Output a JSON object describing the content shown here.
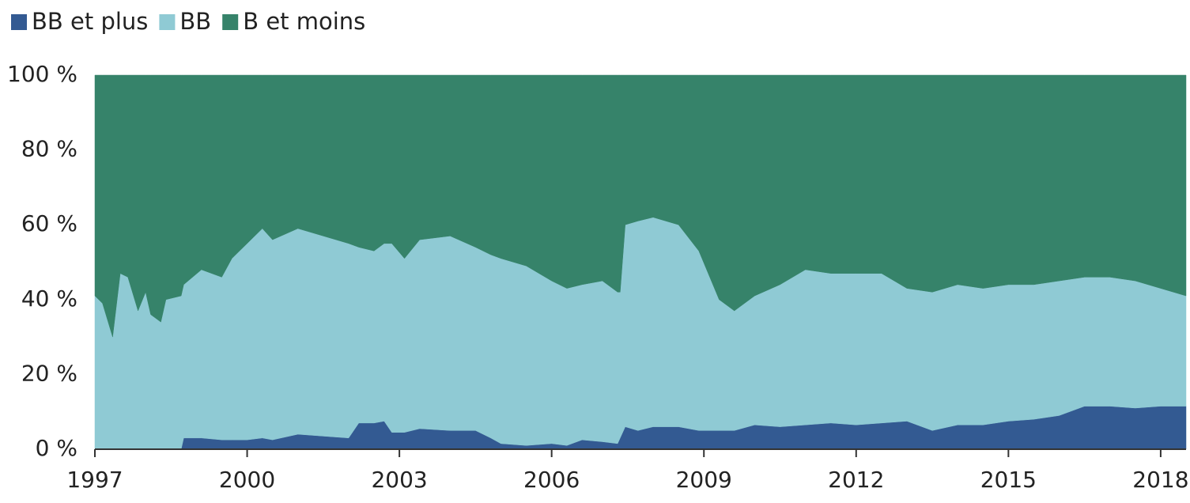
{
  "chart_data": {
    "type": "stacked_area",
    "x": [
      1997.0,
      1997.15,
      1997.35,
      1997.5,
      1997.65,
      1997.85,
      1998.0,
      1998.1,
      1998.3,
      1998.4,
      1998.7,
      1998.75,
      1999.1,
      1999.5,
      1999.7,
      2000.0,
      2000.3,
      2000.5,
      2001.0,
      2001.5,
      2002.0,
      2002.2,
      2002.5,
      2002.7,
      2002.85,
      2003.1,
      2003.4,
      2004.0,
      2004.5,
      2004.8,
      2005.0,
      2005.5,
      2006.0,
      2006.3,
      2006.6,
      2007.0,
      2007.3,
      2007.35,
      2007.45,
      2007.7,
      2008.0,
      2008.5,
      2008.9,
      2009.3,
      2009.6,
      2010.0,
      2010.5,
      2011.0,
      2011.5,
      2012.0,
      2012.5,
      2013.0,
      2013.5,
      2014.0,
      2014.5,
      2015.0,
      2015.5,
      2016.0,
      2016.5,
      2017.0,
      2017.5,
      2018.0,
      2018.5
    ],
    "series": [
      {
        "name": "BB et plus",
        "color": "#335a92",
        "values": [
          0,
          0,
          0,
          0,
          0,
          0,
          0,
          0,
          0,
          0,
          0,
          3,
          3,
          2.5,
          2.5,
          2.5,
          3,
          2.5,
          4,
          3.5,
          3,
          7,
          7,
          7.5,
          4.5,
          4.5,
          5.5,
          5,
          5,
          3,
          1.5,
          1,
          1.5,
          1,
          2.5,
          2,
          1.5,
          3,
          6,
          5,
          6,
          6,
          5,
          5,
          5,
          6.5,
          6,
          6.5,
          7,
          6.5,
          7,
          7.5,
          5,
          6.5,
          6.5,
          7.5,
          8,
          9,
          11.5,
          11.5,
          11,
          11.5,
          11.5
        ]
      },
      {
        "name": "BB",
        "color": "#8fcad4",
        "values": [
          41,
          39,
          30,
          47,
          46,
          37,
          42,
          36,
          34,
          40,
          41,
          41,
          45,
          43.5,
          48.5,
          52.5,
          56,
          53.5,
          55,
          53.5,
          52,
          47,
          46,
          47.5,
          50.5,
          46.5,
          50.5,
          52,
          49,
          49,
          49.5,
          48,
          43.5,
          42,
          41.5,
          43,
          40.5,
          39,
          54,
          56,
          56,
          54,
          48,
          35,
          32,
          34.5,
          38,
          41.5,
          40,
          40.5,
          40,
          35.5,
          37,
          37.5,
          36.5,
          36.5,
          36,
          36,
          34.5,
          34.5,
          34,
          31.5,
          29.5
        ]
      },
      {
        "name": "B et moins",
        "color": "#36836a",
        "values": [
          59,
          61,
          70,
          53,
          54,
          63,
          58,
          64,
          66,
          60,
          59,
          56,
          52,
          54,
          49,
          45,
          41,
          44,
          41,
          43,
          45,
          46,
          47,
          45,
          45,
          49,
          44,
          43,
          46,
          48,
          49,
          51,
          55,
          57,
          56,
          55,
          58,
          58,
          40,
          39,
          38,
          40,
          47,
          60,
          63,
          59,
          56,
          52,
          53,
          53,
          53,
          57,
          58,
          56,
          57,
          56,
          56,
          55,
          54,
          54,
          55,
          57,
          59
        ]
      }
    ],
    "xlim": [
      1997,
      2018.5
    ],
    "xticks": [
      1997,
      2000,
      2003,
      2006,
      2009,
      2012,
      2015,
      2018
    ],
    "ylim": [
      0,
      100
    ],
    "yticks": [
      {
        "value": 0,
        "label": "0 %"
      },
      {
        "value": 20,
        "label": "20 %"
      },
      {
        "value": 40,
        "label": "40 %"
      },
      {
        "value": 60,
        "label": "60 %"
      },
      {
        "value": 80,
        "label": "80 %"
      },
      {
        "value": 100,
        "label": "100 %"
      }
    ],
    "legend": "top-left"
  }
}
